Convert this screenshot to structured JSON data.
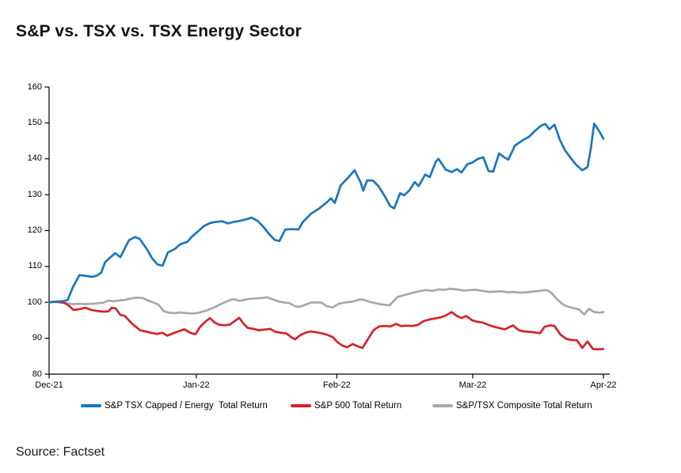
{
  "title": "S&P vs. TSX vs. TSX Energy Sector",
  "source": "Source: Factset",
  "colors": {
    "energy_blue": "#1b75bc",
    "sp500_red": "#d4222a",
    "tsx_gray": "#a6a8ab",
    "axis": "#000000"
  },
  "chart_data": {
    "type": "line",
    "title": "S&P vs. TSX vs. TSX Energy Sector",
    "xlabel": "",
    "ylabel": "",
    "ylim": [
      80,
      160
    ],
    "yticks": [
      160,
      150,
      140,
      130,
      120,
      110,
      100,
      90,
      80
    ],
    "xlim": [
      0,
      84
    ],
    "x_unit": "trading days since Dec-21 (indexed, start = 100)",
    "xticks": [
      {
        "pos": 0,
        "label": "Dec-21"
      },
      {
        "pos": 22.3,
        "label": "Jan-22"
      },
      {
        "pos": 43.6,
        "label": "Feb-22"
      },
      {
        "pos": 64.2,
        "label": "Mar-22"
      },
      {
        "pos": 84,
        "label": "Apr-22"
      }
    ],
    "grid": false,
    "legend_position": "bottom",
    "series": [
      {
        "name": "S&P TSX Capped / Energy  Total Return",
        "color": "#1b75bc",
        "points": [
          [
            0,
            100
          ],
          [
            1,
            100.2
          ],
          [
            1.9,
            100.3
          ],
          [
            2.8,
            100.6
          ],
          [
            3.6,
            104.2
          ],
          [
            4.6,
            107.6
          ],
          [
            5.5,
            107.4
          ],
          [
            6.5,
            107.1
          ],
          [
            7.2,
            107.4
          ],
          [
            7.9,
            108.3
          ],
          [
            8.5,
            111.2
          ],
          [
            10,
            113.7
          ],
          [
            10.8,
            112.6
          ],
          [
            12.1,
            117.3
          ],
          [
            13,
            118.2
          ],
          [
            13.7,
            117.7
          ],
          [
            14.8,
            114.9
          ],
          [
            15.6,
            112.3
          ],
          [
            16.4,
            110.6
          ],
          [
            17.2,
            110.2
          ],
          [
            18,
            113.9
          ],
          [
            19,
            114.8
          ],
          [
            19.9,
            116.2
          ],
          [
            20.9,
            116.8
          ],
          [
            21.7,
            118.4
          ],
          [
            22.7,
            120
          ],
          [
            23.5,
            121.3
          ],
          [
            24.4,
            122.1
          ],
          [
            25.2,
            122.4
          ],
          [
            26.2,
            122.6
          ],
          [
            27.1,
            122
          ],
          [
            28,
            122.4
          ],
          [
            28.9,
            122.7
          ],
          [
            29.8,
            123.1
          ],
          [
            30.7,
            123.6
          ],
          [
            31.6,
            122.7
          ],
          [
            32.5,
            121
          ],
          [
            33.4,
            118.9
          ],
          [
            34.2,
            117.4
          ],
          [
            34.9,
            117.1
          ],
          [
            35.8,
            120.3
          ],
          [
            36.7,
            120.4
          ],
          [
            37.8,
            120.3
          ],
          [
            38.5,
            122.5
          ],
          [
            39.7,
            124.7
          ],
          [
            40.9,
            126.1
          ],
          [
            42.1,
            127.9
          ],
          [
            42.7,
            129
          ],
          [
            43.3,
            127.7
          ],
          [
            44.2,
            132.6
          ],
          [
            45.4,
            134.9
          ],
          [
            46.3,
            136.8
          ],
          [
            47.2,
            133.5
          ],
          [
            47.6,
            131.1
          ],
          [
            48.2,
            134
          ],
          [
            49.1,
            133.9
          ],
          [
            49.9,
            132.4
          ],
          [
            50.9,
            129.5
          ],
          [
            51.7,
            126.8
          ],
          [
            52.3,
            126.2
          ],
          [
            53.2,
            130.4
          ],
          [
            53.8,
            129.8
          ],
          [
            54.6,
            131.2
          ],
          [
            55.4,
            133.5
          ],
          [
            56,
            132.4
          ],
          [
            57,
            135.6
          ],
          [
            57.7,
            134.9
          ],
          [
            58.6,
            139.2
          ],
          [
            59,
            140
          ],
          [
            60.1,
            137
          ],
          [
            61,
            136.3
          ],
          [
            61.8,
            137.1
          ],
          [
            62.5,
            136.2
          ],
          [
            63.4,
            138.5
          ],
          [
            64.2,
            139
          ],
          [
            65,
            140
          ],
          [
            65.8,
            140.4
          ],
          [
            66.6,
            136.6
          ],
          [
            67.3,
            136.4
          ],
          [
            68.2,
            141.5
          ],
          [
            68.9,
            140.5
          ],
          [
            69.6,
            139.8
          ],
          [
            70.6,
            143.7
          ],
          [
            71.8,
            145.2
          ],
          [
            72.7,
            146.1
          ],
          [
            73.7,
            147.9
          ],
          [
            74.6,
            149.3
          ],
          [
            75.2,
            149.7
          ],
          [
            75.8,
            148.2
          ],
          [
            76.6,
            149.5
          ],
          [
            77.4,
            145.3
          ],
          [
            78.2,
            142.3
          ],
          [
            79.1,
            140.1
          ],
          [
            79.9,
            138.3
          ],
          [
            80.8,
            136.8
          ],
          [
            81.6,
            137.7
          ],
          [
            82.1,
            143
          ],
          [
            82.6,
            149.8
          ],
          [
            83.4,
            147.6
          ],
          [
            84,
            145.6
          ]
        ]
      },
      {
        "name": "S&P 500 Total Return",
        "color": "#d4222a",
        "points": [
          [
            0,
            100
          ],
          [
            0.7,
            100.2
          ],
          [
            1.6,
            100.1
          ],
          [
            2.4,
            99.8
          ],
          [
            3.1,
            98.9
          ],
          [
            3.7,
            97.9
          ],
          [
            4.6,
            98.1
          ],
          [
            5.5,
            98.5
          ],
          [
            6.4,
            97.9
          ],
          [
            7.2,
            97.6
          ],
          [
            8.2,
            97.4
          ],
          [
            9,
            97.5
          ],
          [
            9.5,
            98.5
          ],
          [
            10.1,
            98.3
          ],
          [
            10.8,
            96.5
          ],
          [
            11.5,
            96.2
          ],
          [
            12.4,
            94.4
          ],
          [
            13,
            93.4
          ],
          [
            13.8,
            92.2
          ],
          [
            14.6,
            91.9
          ],
          [
            15.5,
            91.5
          ],
          [
            16.3,
            91.2
          ],
          [
            17.2,
            91.5
          ],
          [
            17.9,
            90.7
          ],
          [
            18.7,
            91.3
          ],
          [
            19.7,
            92
          ],
          [
            20.5,
            92.5
          ],
          [
            21.4,
            91.5
          ],
          [
            22.2,
            91.1
          ],
          [
            22.9,
            93.2
          ],
          [
            23.8,
            94.8
          ],
          [
            24.4,
            95.6
          ],
          [
            25,
            94.5
          ],
          [
            25.7,
            93.8
          ],
          [
            26.5,
            93.6
          ],
          [
            27.4,
            93.8
          ],
          [
            28.2,
            94.9
          ],
          [
            28.8,
            95.7
          ],
          [
            29.5,
            94
          ],
          [
            30.1,
            92.9
          ],
          [
            31,
            92.6
          ],
          [
            31.8,
            92.2
          ],
          [
            32.6,
            92.4
          ],
          [
            33.5,
            92.6
          ],
          [
            34.3,
            91.8
          ],
          [
            35.2,
            91.5
          ],
          [
            36,
            91.3
          ],
          [
            36.7,
            90.3
          ],
          [
            37.3,
            89.7
          ],
          [
            38,
            90.8
          ],
          [
            38.8,
            91.5
          ],
          [
            39.6,
            91.9
          ],
          [
            40.4,
            91.7
          ],
          [
            41.3,
            91.4
          ],
          [
            42.1,
            91
          ],
          [
            43,
            90.3
          ],
          [
            43.7,
            88.9
          ],
          [
            44.5,
            87.9
          ],
          [
            45.2,
            87.5
          ],
          [
            46,
            88.4
          ],
          [
            46.7,
            87.8
          ],
          [
            47.5,
            87.3
          ],
          [
            48.4,
            90
          ],
          [
            49.2,
            92.3
          ],
          [
            50,
            93.3
          ],
          [
            50.9,
            93.4
          ],
          [
            51.7,
            93.3
          ],
          [
            52.6,
            94
          ],
          [
            53.3,
            93.4
          ],
          [
            54.1,
            93.5
          ],
          [
            55,
            93.4
          ],
          [
            55.9,
            93.7
          ],
          [
            56.8,
            94.8
          ],
          [
            57.6,
            95.2
          ],
          [
            58.4,
            95.5
          ],
          [
            59.3,
            95.8
          ],
          [
            60.1,
            96.3
          ],
          [
            61,
            97.3
          ],
          [
            61.8,
            96.2
          ],
          [
            62.5,
            95.6
          ],
          [
            63.2,
            96.2
          ],
          [
            64.1,
            95
          ],
          [
            64.9,
            94.6
          ],
          [
            65.8,
            94.3
          ],
          [
            66.6,
            93.7
          ],
          [
            67.4,
            93.2
          ],
          [
            68.3,
            92.8
          ],
          [
            69.1,
            92.5
          ],
          [
            70.3,
            93.6
          ],
          [
            71.2,
            92.2
          ],
          [
            72,
            91.9
          ],
          [
            72.8,
            91.8
          ],
          [
            73.7,
            91.6
          ],
          [
            74.4,
            91.4
          ],
          [
            75.1,
            93.2
          ],
          [
            76,
            93.6
          ],
          [
            76.6,
            93.4
          ],
          [
            77.5,
            91
          ],
          [
            78.4,
            89.8
          ],
          [
            79.2,
            89.5
          ],
          [
            80,
            89.4
          ],
          [
            80.8,
            87.3
          ],
          [
            81.6,
            89.1
          ],
          [
            82.4,
            87
          ],
          [
            83.2,
            86.9
          ],
          [
            84,
            87
          ]
        ]
      },
      {
        "name": "S&P/TSX Composite Total Return",
        "color": "#a6a8ab",
        "points": [
          [
            0,
            100
          ],
          [
            1,
            100.1
          ],
          [
            1.9,
            99.9
          ],
          [
            2.8,
            99.7
          ],
          [
            3.7,
            99.5
          ],
          [
            4.6,
            99.6
          ],
          [
            5.5,
            99.5
          ],
          [
            6.4,
            99.6
          ],
          [
            7.2,
            99.7
          ],
          [
            8.2,
            99.9
          ],
          [
            9,
            100.5
          ],
          [
            9.7,
            100.3
          ],
          [
            10.6,
            100.5
          ],
          [
            11.5,
            100.7
          ],
          [
            12.4,
            101.1
          ],
          [
            13.2,
            101.3
          ],
          [
            14.2,
            101.2
          ],
          [
            15,
            100.5
          ],
          [
            15.8,
            100
          ],
          [
            16.6,
            99.3
          ],
          [
            17.4,
            97.5
          ],
          [
            18.2,
            97.1
          ],
          [
            19.1,
            97
          ],
          [
            19.9,
            97.2
          ],
          [
            20.8,
            97
          ],
          [
            21.6,
            96.9
          ],
          [
            22.4,
            97
          ],
          [
            23.3,
            97.4
          ],
          [
            24.1,
            97.9
          ],
          [
            25,
            98.6
          ],
          [
            25.8,
            99.3
          ],
          [
            26.6,
            100
          ],
          [
            27.5,
            100.7
          ],
          [
            28.1,
            100.9
          ],
          [
            28.8,
            100.4
          ],
          [
            29.6,
            100.7
          ],
          [
            30.5,
            101
          ],
          [
            31.3,
            101.1
          ],
          [
            32.2,
            101.2
          ],
          [
            33,
            101.4
          ],
          [
            33.8,
            100.9
          ],
          [
            34.7,
            100.3
          ],
          [
            35.5,
            100
          ],
          [
            36.4,
            99.8
          ],
          [
            37.2,
            99
          ],
          [
            37.9,
            98.7
          ],
          [
            38.8,
            99.3
          ],
          [
            39.6,
            99.9
          ],
          [
            40.4,
            100
          ],
          [
            41.3,
            99.9
          ],
          [
            42.1,
            98.9
          ],
          [
            43,
            98.6
          ],
          [
            43.9,
            99.6
          ],
          [
            44.9,
            100
          ],
          [
            46,
            100.2
          ],
          [
            46.9,
            100.7
          ],
          [
            47.5,
            100.8
          ],
          [
            48.7,
            100.1
          ],
          [
            50.4,
            99.4
          ],
          [
            51.6,
            99.2
          ],
          [
            52.8,
            101.5
          ],
          [
            54.4,
            102.3
          ],
          [
            55.9,
            103
          ],
          [
            57.1,
            103.4
          ],
          [
            58.1,
            103.2
          ],
          [
            59,
            103.6
          ],
          [
            59.9,
            103.5
          ],
          [
            60.8,
            103.8
          ],
          [
            61.8,
            103.6
          ],
          [
            62.8,
            103.3
          ],
          [
            63.7,
            103.4
          ],
          [
            64.7,
            103.5
          ],
          [
            65.6,
            103.2
          ],
          [
            66.6,
            102.9
          ],
          [
            67.6,
            103
          ],
          [
            68.5,
            103.1
          ],
          [
            69.5,
            102.8
          ],
          [
            70.4,
            102.9
          ],
          [
            71.4,
            102.7
          ],
          [
            72.4,
            102.8
          ],
          [
            73.3,
            103
          ],
          [
            74.3,
            103.2
          ],
          [
            75.2,
            103.4
          ],
          [
            75.6,
            103.3
          ],
          [
            76.2,
            102.5
          ],
          [
            76.9,
            101
          ],
          [
            77.8,
            99.5
          ],
          [
            78.6,
            98.8
          ],
          [
            79.4,
            98.4
          ],
          [
            80.3,
            98
          ],
          [
            81.1,
            96.6
          ],
          [
            81.8,
            98.2
          ],
          [
            82.6,
            97.3
          ],
          [
            83.4,
            97.1
          ],
          [
            84,
            97.3
          ]
        ]
      }
    ]
  }
}
